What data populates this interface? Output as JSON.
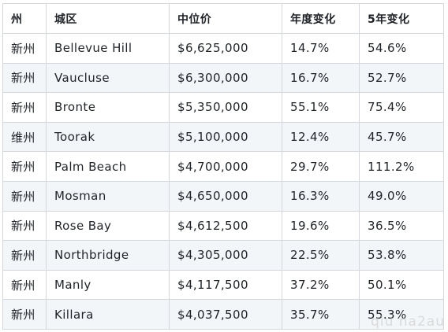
{
  "table": {
    "headers": {
      "state": "州",
      "suburb": "城区",
      "median": "中位价",
      "annual": "年度变化",
      "five_year": "5年变化"
    },
    "rows": [
      {
        "state": "新州",
        "suburb": "Bellevue Hill",
        "median": "$6,625,000",
        "annual": "14.7%",
        "five_year": "54.6%"
      },
      {
        "state": "新州",
        "suburb": "Vaucluse",
        "median": "$6,300,000",
        "annual": "16.7%",
        "five_year": "52.7%"
      },
      {
        "state": "新州",
        "suburb": "Bronte",
        "median": "$5,350,000",
        "annual": "55.1%",
        "five_year": "75.4%"
      },
      {
        "state": "维州",
        "suburb": "Toorak",
        "median": "$5,100,000",
        "annual": "12.4%",
        "five_year": "45.7%"
      },
      {
        "state": "新州",
        "suburb": "Palm Beach",
        "median": "$4,700,000",
        "annual": "29.7%",
        "five_year": "111.2%"
      },
      {
        "state": "新州",
        "suburb": "Mosman",
        "median": "$4,650,000",
        "annual": "16.3%",
        "five_year": "49.0%"
      },
      {
        "state": "新州",
        "suburb": "Rose Bay",
        "median": "$4,612,500",
        "annual": "19.6%",
        "five_year": "36.5%"
      },
      {
        "state": "新州",
        "suburb": "Northbridge",
        "median": "$4,305,000",
        "annual": "22.5%",
        "five_year": "53.8%"
      },
      {
        "state": "新州",
        "suburb": "Manly",
        "median": "$4,117,500",
        "annual": "37.2%",
        "five_year": "50.1%"
      },
      {
        "state": "新州",
        "suburb": "Killara",
        "median": "$4,037,500",
        "annual": "35.7%",
        "five_year": "55.3%"
      }
    ]
  },
  "watermark": "qiu na2au"
}
